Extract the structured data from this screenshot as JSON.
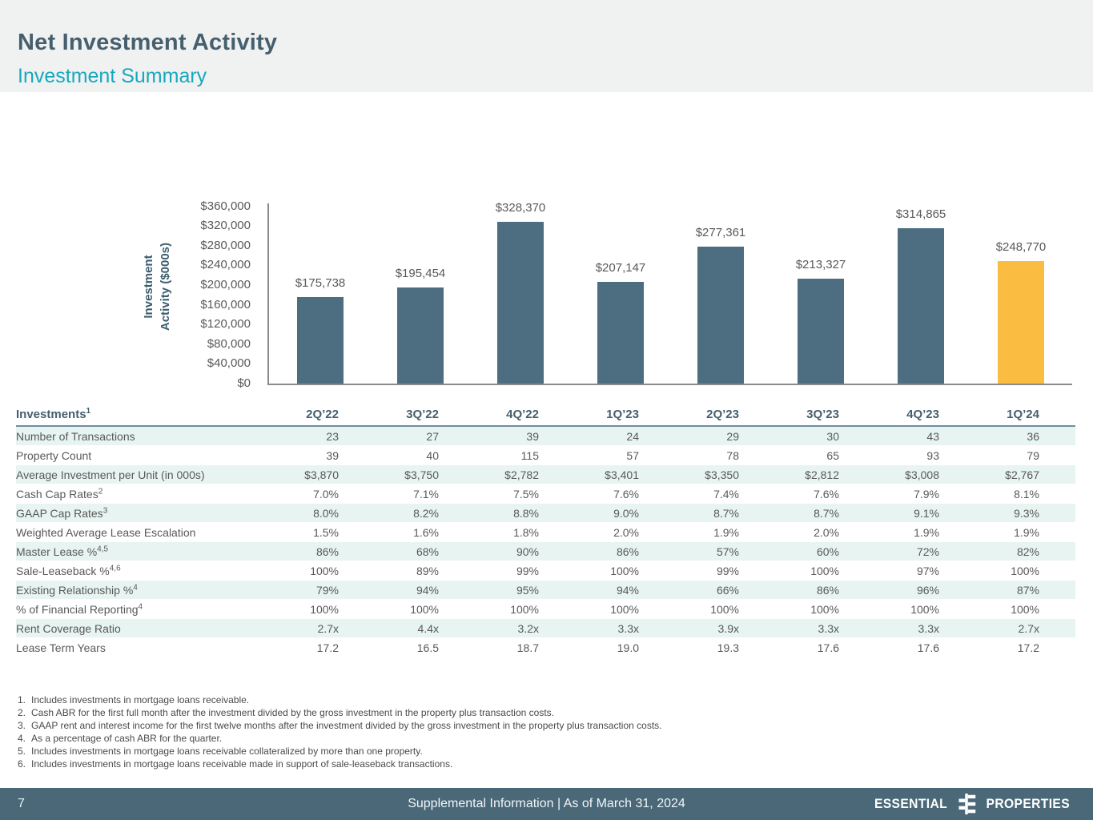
{
  "header": {
    "title": "Net Investment Activity",
    "subtitle": "Investment Summary"
  },
  "chart_data": {
    "type": "bar",
    "title": "",
    "xlabel": "",
    "ylabel": "Investment Activity ($000s)",
    "ylabel_lines": [
      "Investment",
      "Activity ($000s)"
    ],
    "categories": [
      "2Q’22",
      "3Q’22",
      "4Q’22",
      "1Q’23",
      "2Q’23",
      "3Q’23",
      "4Q’23",
      "1Q’24"
    ],
    "values": [
      175738,
      195454,
      328370,
      207147,
      277361,
      213327,
      314865,
      248770
    ],
    "value_labels": [
      "$175,738",
      "$195,454",
      "$328,370",
      "$207,147",
      "$277,361",
      "$213,327",
      "$314,865",
      "$248,770"
    ],
    "ylim": [
      0,
      360000
    ],
    "ytick_step": 40000,
    "ytick_labels": [
      "$360,000",
      "$320,000",
      "$280,000",
      "$240,000",
      "$200,000",
      "$160,000",
      "$120,000",
      "$80,000",
      "$40,000",
      "$0"
    ],
    "grid": false,
    "legend": false,
    "bar_color": "#4D6E80",
    "highlight_color": "#FBBC42",
    "highlight_index": 7
  },
  "table": {
    "corner_label": "Investments",
    "corner_sup": "1",
    "columns": [
      "2Q’22",
      "3Q’22",
      "4Q’22",
      "1Q’23",
      "2Q’23",
      "3Q’23",
      "4Q’23",
      "1Q’24"
    ],
    "rows": [
      {
        "label": "Number of Transactions",
        "sup": "",
        "values": [
          "23",
          "27",
          "39",
          "24",
          "29",
          "30",
          "43",
          "36"
        ]
      },
      {
        "label": "Property Count",
        "sup": "",
        "values": [
          "39",
          "40",
          "115",
          "57",
          "78",
          "65",
          "93",
          "79"
        ]
      },
      {
        "label": "Average Investment per Unit (in 000s)",
        "sup": "",
        "values": [
          "$3,870",
          "$3,750",
          "$2,782",
          "$3,401",
          "$3,350",
          "$2,812",
          "$3,008",
          "$2,767"
        ]
      },
      {
        "label": "Cash Cap Rates",
        "sup": "2",
        "values": [
          "7.0%",
          "7.1%",
          "7.5%",
          "7.6%",
          "7.4%",
          "7.6%",
          "7.9%",
          "8.1%"
        ]
      },
      {
        "label": "GAAP Cap Rates",
        "sup": "3",
        "values": [
          "8.0%",
          "8.2%",
          "8.8%",
          "9.0%",
          "8.7%",
          "8.7%",
          "9.1%",
          "9.3%"
        ]
      },
      {
        "label": "Weighted Average Lease Escalation",
        "sup": "",
        "values": [
          "1.5%",
          "1.6%",
          "1.8%",
          "2.0%",
          "1.9%",
          "2.0%",
          "1.9%",
          "1.9%"
        ]
      },
      {
        "label": "Master Lease %",
        "sup": "4,5",
        "values": [
          "86%",
          "68%",
          "90%",
          "86%",
          "57%",
          "60%",
          "72%",
          "82%"
        ]
      },
      {
        "label": "Sale-Leaseback %",
        "sup": "4,6",
        "values": [
          "100%",
          "89%",
          "99%",
          "100%",
          "99%",
          "100%",
          "97%",
          "100%"
        ]
      },
      {
        "label": "Existing Relationship %",
        "sup": "4",
        "values": [
          "79%",
          "94%",
          "95%",
          "94%",
          "66%",
          "86%",
          "96%",
          "87%"
        ]
      },
      {
        "label": "% of Financial Reporting",
        "sup": "4",
        "values": [
          "100%",
          "100%",
          "100%",
          "100%",
          "100%",
          "100%",
          "100%",
          "100%"
        ]
      },
      {
        "label": "Rent Coverage Ratio",
        "sup": "",
        "values": [
          "2.7x",
          "4.4x",
          "3.2x",
          "3.3x",
          "3.9x",
          "3.3x",
          "3.3x",
          "2.7x"
        ]
      },
      {
        "label": "Lease Term Years",
        "sup": "",
        "values": [
          "17.2",
          "16.5",
          "18.7",
          "19.0",
          "19.3",
          "17.6",
          "17.6",
          "17.2"
        ]
      }
    ]
  },
  "footnotes": [
    {
      "num": "1.",
      "text": "Includes investments in mortgage loans receivable."
    },
    {
      "num": "2.",
      "text": "Cash ABR for the first full month after the investment divided by the gross investment in the property plus transaction costs."
    },
    {
      "num": "3.",
      "text": "GAAP rent and interest income for the first twelve months after the investment divided by the gross investment in the property plus transaction costs."
    },
    {
      "num": "4.",
      "text": "As a percentage of cash ABR for the quarter."
    },
    {
      "num": "5.",
      "text": "Includes investments in mortgage loans receivable collateralized by more than one property."
    },
    {
      "num": "6.",
      "text": "Includes investments in mortgage loans receivable made in support of sale-leaseback transactions."
    }
  ],
  "footer": {
    "page": "7",
    "text": "Supplemental Information |  As of March 31, 2024",
    "brand_left": "ESSENTIAL",
    "brand_right": "PROPERTIES"
  }
}
